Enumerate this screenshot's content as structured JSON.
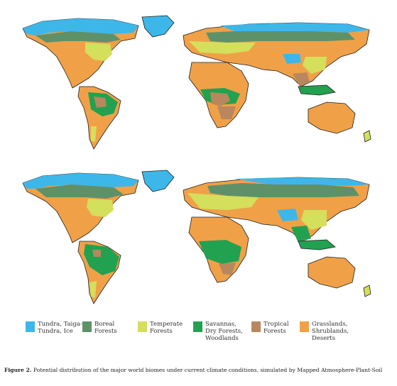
{
  "colors": {
    "tundra": "#3db7ea",
    "boreal": "#5f9169",
    "temperate": "#d4df5c",
    "savanna": "#22a150",
    "tropical": "#b8875d",
    "grassland": "#f0a148",
    "coast": "#1e1e1e"
  },
  "legend": [
    {
      "key": "tundra",
      "label": "Tundra, Taiga-\nTundra, Ice"
    },
    {
      "key": "boreal",
      "label": "Boreal\nForests"
    },
    {
      "key": "temperate",
      "label": "Temperate\nForests"
    },
    {
      "key": "savanna",
      "label": "Savannas,\nDry Forests,\nWoodlands"
    },
    {
      "key": "tropical",
      "label": "Tropical\nForests"
    },
    {
      "key": "grassland",
      "label": "Grasslands,\nShrublands,\nDeserts"
    }
  ],
  "caption": {
    "label": "Figure 2.",
    "text": " Potential distribution of the major world biomes under current climate conditions, simulated by Mapped Atmosphere-Plant-Soil"
  }
}
